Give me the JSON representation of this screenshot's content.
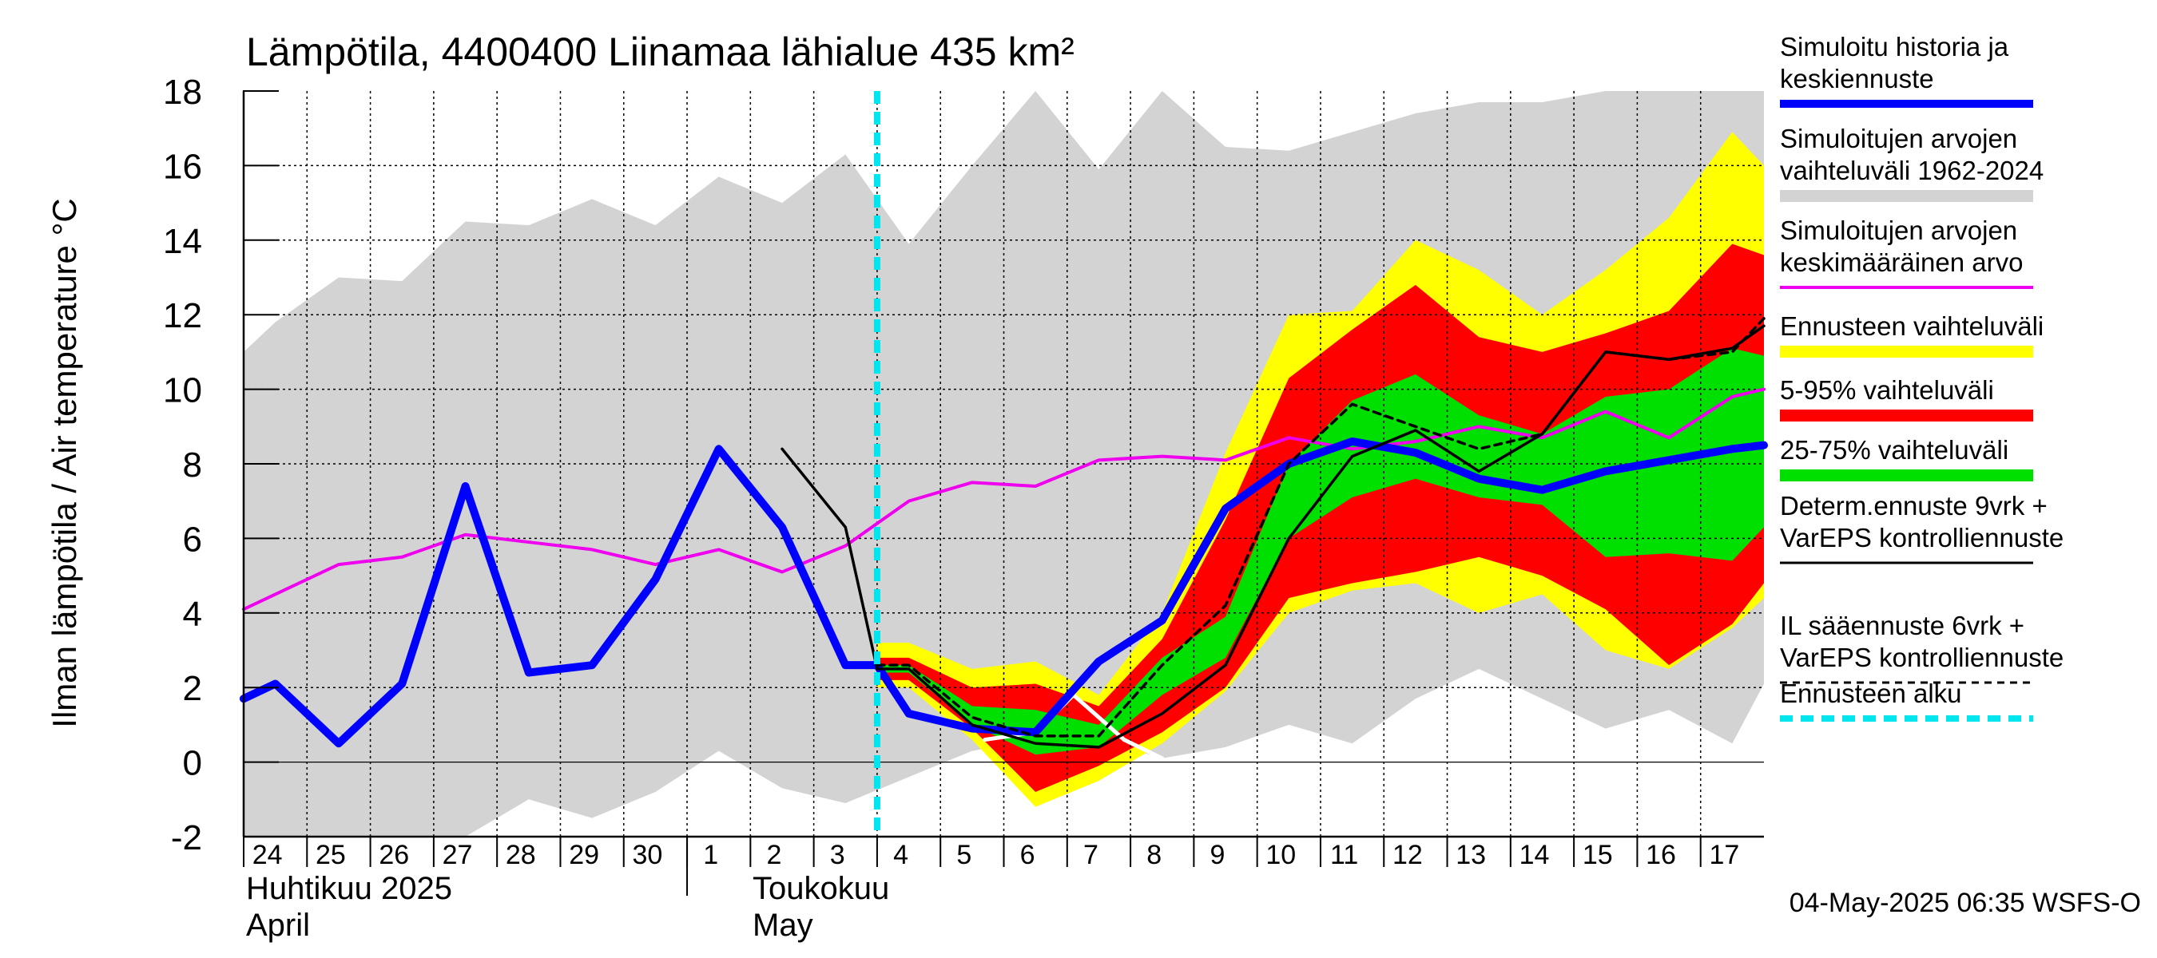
{
  "chart_data": {
    "type": "area",
    "title": "Lämpötila, 4400400 Liinamaa lähialue 435 km²",
    "ylabel": "Ilman lämpötila / Air temperature   °C",
    "ylim": [
      -2,
      18
    ],
    "yticks": [
      "-2",
      "0",
      "2",
      "4",
      "6",
      "8",
      "10",
      "12",
      "14",
      "16",
      "18"
    ],
    "xlim": [
      -0.5,
      23.5
    ],
    "x_tick_labels": [
      "24",
      "25",
      "26",
      "27",
      "28",
      "29",
      "30",
      "1",
      "2",
      "3",
      "4",
      "5",
      "6",
      "7",
      "8",
      "9",
      "10",
      "11",
      "12",
      "13",
      "14",
      "15",
      "16",
      "17"
    ],
    "month_labels": {
      "april_fi": "Huhtikuu  2025",
      "april_en": "April",
      "may_fi": "Toukokuu",
      "may_en": "May"
    },
    "forecast_start_x": 9.5,
    "grid": true,
    "legend_position": "right",
    "footer": "04-May-2025 06:35 WSFS-O",
    "colors": {
      "history_band": "#d3d3d3",
      "forecast_range": "#ffff00",
      "range_5_95": "#ff0000",
      "range_25_75": "#00e000",
      "simulated": "#0000ff",
      "mean": "#ee00ee",
      "deterministic": "#000000",
      "forecast_start": "#00e5ee"
    },
    "legend": [
      {
        "label": "Simuloitu historia ja keskiennuste",
        "style": "simulated"
      },
      {
        "label": "Simuloitujen arvojen vaihteluväli 1962-2024",
        "style": "history_band"
      },
      {
        "label": "Simuloitujen arvojen keskimääräinen arvo",
        "style": "mean"
      },
      {
        "label": "Ennusteen vaihteluväli",
        "style": "forecast_range"
      },
      {
        "label": "5-95% vaihteluväli",
        "style": "range_5_95"
      },
      {
        "label": "25-75% vaihteluväli",
        "style": "range_25_75"
      },
      {
        "label": "Determ.ennuste 9vrk + VarEPS kontrolliennuste",
        "style": "deterministic"
      },
      {
        "label": "IL sääennuste 6vrk  + VarEPS kontrolliennuste",
        "style": "il_forecast"
      },
      {
        "label": "Ennusteen alku",
        "style": "forecast_start"
      }
    ],
    "series": [
      {
        "name": "Simuloitujen arvojen vaihteluväli 1962-2024",
        "kind": "band",
        "x": [
          -0.5,
          0,
          1,
          2,
          3,
          4,
          5,
          6,
          7,
          8,
          9,
          10,
          11,
          12,
          13,
          14,
          15,
          16,
          17,
          18,
          19,
          20,
          21,
          22,
          23,
          23.5
        ],
        "upper": [
          11,
          11.8,
          13.0,
          12.9,
          14.5,
          14.4,
          15.1,
          14.4,
          15.7,
          15.0,
          16.3,
          13.9,
          16.0,
          18.3,
          15.9,
          18.0,
          16.5,
          16.4,
          16.9,
          17.4,
          17.7,
          17.7,
          18.0,
          18.0,
          18.0,
          18.0
        ],
        "lower": [
          -2,
          -2,
          -2,
          -2,
          -2,
          -1.0,
          -1.5,
          -0.8,
          0.3,
          -0.7,
          -1.1,
          -0.4,
          0.3,
          0.6,
          0.6,
          0.1,
          0.4,
          1.0,
          0.5,
          1.7,
          2.5,
          1.7,
          0.9,
          1.4,
          0.5,
          2.1
        ]
      },
      {
        "name": "Ennusteen vaihteluväli",
        "kind": "band",
        "x": [
          9.5,
          10,
          11,
          12,
          13,
          14,
          15,
          16,
          17,
          18,
          19,
          20,
          21,
          22,
          23,
          23.5
        ],
        "upper": [
          3.2,
          3.2,
          2.5,
          2.7,
          1.8,
          4.0,
          8.3,
          12.0,
          12.1,
          14.0,
          13.2,
          12.0,
          13.2,
          14.6,
          16.9,
          16.0
        ],
        "lower": [
          2.0,
          2.0,
          0.6,
          -1.2,
          -0.5,
          0.5,
          1.9,
          4.0,
          4.6,
          4.8,
          4.0,
          4.5,
          3.0,
          2.5,
          3.6,
          4.4
        ]
      },
      {
        "name": "5-95% vaihteluväli",
        "kind": "band",
        "x": [
          9.5,
          10,
          11,
          12,
          13,
          14,
          15,
          16,
          17,
          18,
          19,
          20,
          21,
          22,
          23,
          23.5
        ],
        "upper": [
          2.8,
          2.8,
          2.0,
          2.1,
          1.5,
          3.3,
          6.5,
          10.3,
          11.6,
          12.8,
          11.4,
          11.0,
          11.5,
          12.1,
          13.9,
          13.6
        ],
        "lower": [
          2.2,
          2.2,
          0.9,
          -0.8,
          -0.1,
          0.8,
          2.0,
          4.4,
          4.8,
          5.1,
          5.5,
          5.0,
          4.1,
          2.6,
          3.7,
          4.8
        ]
      },
      {
        "name": "25-75% vaihteluväli",
        "kind": "band",
        "x": [
          9.5,
          10,
          11,
          12,
          13,
          14,
          15,
          16,
          17,
          18,
          19,
          20,
          21,
          22,
          23,
          23.5
        ],
        "upper": [
          2.6,
          2.6,
          1.5,
          1.4,
          1.0,
          2.8,
          3.9,
          8.0,
          9.7,
          10.4,
          9.3,
          8.8,
          9.8,
          10.0,
          11.1,
          10.9
        ],
        "lower": [
          2.4,
          2.4,
          1.0,
          0.2,
          0.4,
          1.8,
          2.8,
          6.0,
          7.1,
          7.6,
          7.1,
          6.9,
          5.5,
          5.6,
          5.4,
          6.3
        ]
      },
      {
        "name": "Simuloitujen arvojen keskimääräinen arvo",
        "kind": "line",
        "x": [
          -0.5,
          0,
          1,
          2,
          3,
          4,
          5,
          6,
          7,
          8,
          9,
          10,
          11,
          12,
          13,
          14,
          15,
          16,
          17,
          18,
          19,
          20,
          21,
          22,
          23,
          23.5
        ],
        "y": [
          4.1,
          4.5,
          5.3,
          5.5,
          6.1,
          5.9,
          5.7,
          5.3,
          5.7,
          5.1,
          5.8,
          7.0,
          7.5,
          7.4,
          8.1,
          8.2,
          8.1,
          8.7,
          8.4,
          8.6,
          9.0,
          8.7,
          9.4,
          8.7,
          9.8,
          10.0
        ]
      },
      {
        "name": "Simuloitu historia ja keskiennuste",
        "kind": "line",
        "x": [
          -0.5,
          0,
          1,
          2,
          3,
          4,
          5,
          6,
          7,
          8,
          9,
          9.5,
          10,
          11,
          12,
          13,
          14,
          15,
          16,
          17,
          18,
          19,
          20,
          21,
          22,
          23,
          23.5
        ],
        "y": [
          1.7,
          2.1,
          0.5,
          2.1,
          7.4,
          2.4,
          2.6,
          4.9,
          8.4,
          6.3,
          2.6,
          2.6,
          1.3,
          0.9,
          0.8,
          2.7,
          3.8,
          6.8,
          8.0,
          8.6,
          8.3,
          7.6,
          7.3,
          7.8,
          8.1,
          8.4,
          8.5
        ]
      },
      {
        "name": "Determ.ennuste 9vrk + VarEPS kontrolliennuste",
        "kind": "line",
        "x": [
          8,
          9,
          9.5,
          10,
          11,
          12,
          13,
          14,
          15,
          16,
          17,
          18,
          19,
          20,
          21,
          22,
          23,
          23.5
        ],
        "y": [
          8.4,
          6.3,
          2.5,
          2.5,
          1.0,
          0.5,
          0.4,
          1.3,
          2.6,
          6.0,
          8.2,
          8.9,
          7.8,
          8.8,
          11.0,
          10.8,
          11.1,
          11.7
        ]
      },
      {
        "name": "IL sääennuste 6vrk  + VarEPS kontrolliennuste",
        "kind": "dashed",
        "x": [
          9.5,
          10,
          11,
          12,
          13,
          14,
          15,
          16,
          17,
          18,
          19,
          20,
          21,
          22,
          23,
          23.5
        ],
        "y": [
          2.6,
          2.6,
          1.2,
          0.7,
          0.7,
          2.6,
          4.2,
          8.0,
          9.6,
          9.0,
          8.4,
          8.8,
          11.0,
          10.8,
          11.0,
          11.9
        ]
      },
      {
        "name": "white-gap",
        "kind": "white",
        "x": [
          11.2,
          12.0,
          12.6,
          13.4,
          14.0
        ],
        "y": [
          0.6,
          0.8,
          1.8,
          0.6,
          0.1
        ]
      }
    ]
  }
}
